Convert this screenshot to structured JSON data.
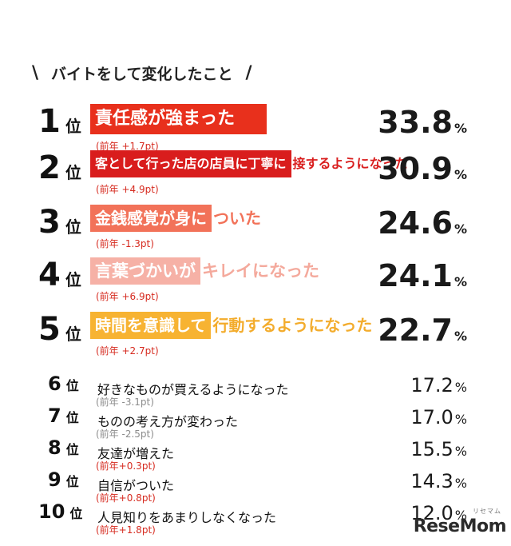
{
  "title": "バイトをして変化したこと",
  "title_slash_left": "\\",
  "title_slash_right": "/",
  "rank_suffix": "位",
  "percent_unit": "%",
  "logo": "ReseMom",
  "logo_sub": "リセマム",
  "chart_data": {
    "type": "table",
    "title": "バイトをして変化したこと",
    "rows": [
      {
        "rank": "1",
        "highlight": "責任感が強まった",
        "rest": "",
        "delta": "(前年 +1.7pt)",
        "value": 33.8,
        "value_text": "33.8",
        "color": "#e8301c",
        "rest_color": "#e8301c"
      },
      {
        "rank": "2",
        "highlight": "客として行った店の店員に丁寧に",
        "rest": "接するようになった",
        "delta": "(前年 +4.9pt)",
        "value": 30.9,
        "value_text": "30.9",
        "color": "#d91d1d",
        "rest_color": "#d91d1d"
      },
      {
        "rank": "3",
        "highlight": "金銭感覚が身に",
        "rest": "ついた",
        "delta": "(前年 -1.3pt)",
        "value": 24.6,
        "value_text": "24.6",
        "color": "#f27259",
        "rest_color": "#f27259"
      },
      {
        "rank": "4",
        "highlight": "言葉づかいが",
        "rest": "キレイになった",
        "delta": "(前年 +6.9pt)",
        "value": 24.1,
        "value_text": "24.1",
        "color": "#f6b1a6",
        "rest_color": "#f4a99c"
      },
      {
        "rank": "5",
        "highlight": "時間を意識して",
        "rest": "行動するようになった",
        "delta": "(前年 +2.7pt)",
        "value": 22.7,
        "value_text": "22.7",
        "color": "#f7b332",
        "rest_color": "#f3ac2c"
      },
      {
        "rank": "6",
        "label": "好きなものが買えるようになった",
        "delta": "(前年 -3.1pt)",
        "value": 17.2,
        "value_text": "17.2",
        "delta_color": "#8c8c8c"
      },
      {
        "rank": "7",
        "label": "ものの考え方が変わった",
        "delta": "(前年 -2.5pt)",
        "value": 17.0,
        "value_text": "17.0",
        "delta_color": "#8c8c8c"
      },
      {
        "rank": "8",
        "label": "友達が増えた",
        "delta": "(前年+0.3pt)",
        "value": 15.5,
        "value_text": "15.5",
        "delta_color": "#d62b20"
      },
      {
        "rank": "9",
        "label": "自信がついた",
        "delta": "(前年+0.8pt)",
        "value": 14.3,
        "value_text": "14.3",
        "delta_color": "#d62b20"
      },
      {
        "rank": "10",
        "label": "人見知りをあまりしなくなった",
        "delta": "(前年+1.8pt)",
        "value": 12.0,
        "value_text": "12.0",
        "delta_color": "#d62b20"
      }
    ]
  }
}
